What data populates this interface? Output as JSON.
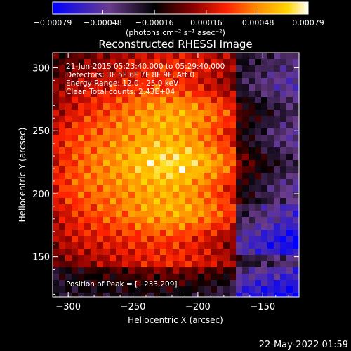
{
  "chart_data": {
    "type": "heatmap",
    "title": "Reconstructed RHESSI Image",
    "xlabel": "Heliocentric X (arcsec)",
    "ylabel": "Heliocentric Y (arcsec)",
    "xlim": [
      -312,
      -122
    ],
    "ylim": [
      118,
      312
    ],
    "x_ticks": [
      -300,
      -250,
      -200,
      -150
    ],
    "y_ticks": [
      150,
      200,
      250,
      300
    ],
    "x_tick_labels": [
      "−300",
      "−250",
      "−200",
      "−150"
    ],
    "y_tick_labels": [
      "150",
      "200",
      "250",
      "300"
    ],
    "colorbar": {
      "unit_label": "(photons cm⁻² s⁻¹ asec⁻²)",
      "ticks": [
        -0.00079,
        -0.00048,
        -0.00016,
        0.00016,
        0.00048,
        0.00079
      ],
      "tick_labels": [
        "−0.00079",
        "−0.00048",
        "−0.00016",
        "0.00016",
        "0.00048",
        "0.00079"
      ],
      "range": [
        -0.00079,
        0.00079
      ],
      "colors": [
        "#0000ff",
        "#6a3c8c",
        "#000000",
        "#8b0000",
        "#ff2200",
        "#ff8c00",
        "#ffd700",
        "#ffffff"
      ]
    },
    "peak": {
      "x": -233,
      "y": 209
    },
    "annotations": [
      "21-Jun-2015 05:23:40.000 to 05:29:40.000",
      "Detectors: 3F 5F 6F 7F 8F 9F, Att 0",
      "Energy Range: 12.0 - 25.0 keV",
      "Clean     Total counts: 2.43E+04",
      "Position of Peak = [−233,209]"
    ],
    "timestamp": "22-May-2022 01:59"
  }
}
